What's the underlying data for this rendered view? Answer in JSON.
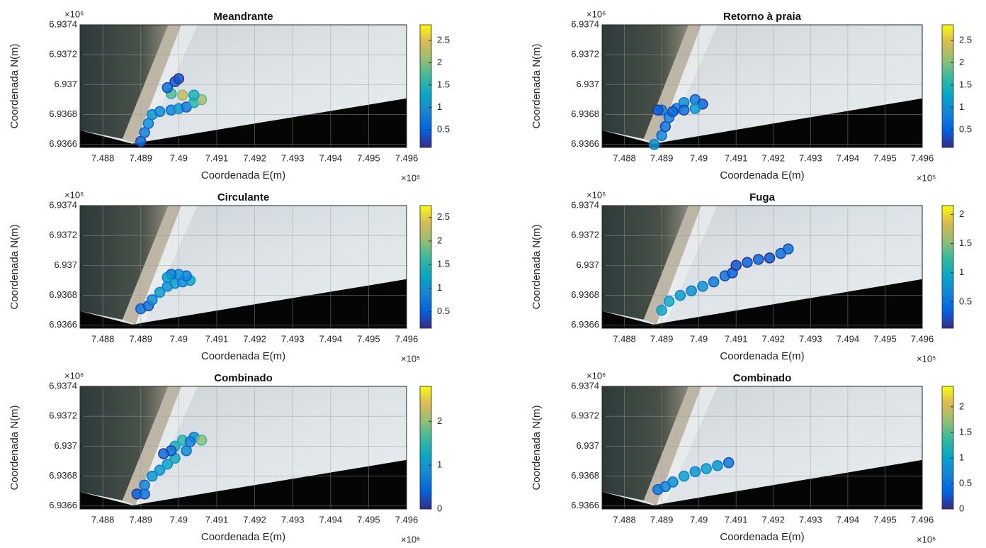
{
  "chart_data": [
    {
      "type": "scatter",
      "title": "Meandrante",
      "xlabel": "Coordenada E(m)",
      "ylabel": "Coordenada N(m)",
      "x_multiplier": "×10⁵",
      "y_multiplier": "×10⁶",
      "x": [
        7.489,
        7.4891,
        7.4892,
        7.4893,
        7.4895,
        7.4898,
        7.49,
        7.4902,
        7.4904,
        7.4906,
        7.4904,
        7.4901,
        7.4898,
        7.4897,
        7.4899,
        7.49
      ],
      "y": [
        6.93662,
        6.93668,
        6.93674,
        6.9368,
        6.93682,
        6.93683,
        6.93684,
        6.93685,
        6.93688,
        6.9369,
        6.93693,
        6.93693,
        6.93694,
        6.93698,
        6.93702,
        6.93704
      ],
      "color_values": [
        0.6,
        0.8,
        1.0,
        1.1,
        1.0,
        0.9,
        1.2,
        0.8,
        1.6,
        2.2,
        1.5,
        2.4,
        1.8,
        0.7,
        0.5,
        0.4
      ],
      "xlim": [
        7.4874,
        7.496
      ],
      "ylim": [
        6.93658,
        6.9374
      ],
      "xticks": [
        7.488,
        7.489,
        7.49,
        7.491,
        7.492,
        7.493,
        7.494,
        7.495,
        7.496
      ],
      "yticks": [
        6.9366,
        6.9368,
        6.937,
        6.9372,
        6.9374
      ],
      "clim": [
        0.1,
        2.85
      ],
      "cticks": [
        0.5,
        1,
        1.5,
        2,
        2.5
      ]
    },
    {
      "type": "scatter",
      "title": "Retorno à praia",
      "xlabel": "Coordenada E(m)",
      "ylabel": "Coordenada N(m)",
      "x_multiplier": "×10⁵",
      "y_multiplier": "×10⁶",
      "x": [
        7.4888,
        7.489,
        7.4891,
        7.4892,
        7.4894,
        7.4896,
        7.4899,
        7.4901,
        7.4899,
        7.4896,
        7.4893,
        7.489,
        7.4889
      ],
      "y": [
        6.9366,
        6.93666,
        6.93672,
        6.93678,
        6.93684,
        6.93688,
        6.9369,
        6.93687,
        6.93684,
        6.93683,
        6.93682,
        6.93683,
        6.93683
      ],
      "color_values": [
        1.1,
        0.9,
        0.7,
        0.8,
        0.9,
        1.0,
        0.8,
        0.6,
        1.2,
        0.7,
        0.6,
        0.9,
        0.5
      ],
      "xlim": [
        7.4874,
        7.496
      ],
      "ylim": [
        6.93658,
        6.9374
      ],
      "xticks": [
        7.488,
        7.489,
        7.49,
        7.491,
        7.492,
        7.493,
        7.494,
        7.495,
        7.496
      ],
      "yticks": [
        6.9366,
        6.9368,
        6.937,
        6.9372,
        6.9374
      ],
      "clim": [
        0.1,
        2.85
      ],
      "cticks": [
        0.5,
        1,
        1.5,
        2,
        2.5
      ]
    },
    {
      "type": "scatter",
      "title": "Circulante",
      "xlabel": "Coordenada E(m)",
      "ylabel": "Coordenada N(m)",
      "x_multiplier": "×10⁵",
      "y_multiplier": "×10⁶",
      "x": [
        7.489,
        7.4892,
        7.4893,
        7.4895,
        7.4897,
        7.4899,
        7.4901,
        7.4903,
        7.4902,
        7.49,
        7.4898,
        7.4897
      ],
      "y": [
        6.93671,
        6.93673,
        6.93677,
        6.93682,
        6.93686,
        6.93688,
        6.93689,
        6.9369,
        6.93693,
        6.93694,
        6.93694,
        6.93692
      ],
      "color_values": [
        0.8,
        0.7,
        1.0,
        1.2,
        1.1,
        1.2,
        1.0,
        1.3,
        0.9,
        1.1,
        0.8,
        1.2
      ],
      "xlim": [
        7.4874,
        7.496
      ],
      "ylim": [
        6.93658,
        6.9374
      ],
      "xticks": [
        7.488,
        7.489,
        7.49,
        7.491,
        7.492,
        7.493,
        7.494,
        7.495,
        7.496
      ],
      "yticks": [
        6.9366,
        6.9368,
        6.937,
        6.9372,
        6.9374
      ],
      "clim": [
        0.15,
        2.75
      ],
      "cticks": [
        0.5,
        1,
        1.5,
        2,
        2.5
      ]
    },
    {
      "type": "scatter",
      "title": "Fuga",
      "xlabel": "Coordenada E(m)",
      "ylabel": "Coordenada N(m)",
      "x_multiplier": "×10⁵",
      "y_multiplier": "×10⁶",
      "x": [
        7.489,
        7.4892,
        7.4895,
        7.4898,
        7.4901,
        7.4904,
        7.4907,
        7.4909,
        7.491,
        7.4913,
        7.4916,
        7.4919,
        7.4922,
        7.4924
      ],
      "y": [
        6.9367,
        6.93676,
        6.9368,
        6.93683,
        6.93686,
        6.93689,
        6.93693,
        6.93695,
        6.937,
        6.93702,
        6.93704,
        6.93705,
        6.93708,
        6.93711
      ],
      "color_values": [
        1.0,
        1.0,
        0.9,
        0.8,
        0.8,
        0.6,
        0.5,
        0.4,
        0.3,
        0.4,
        0.4,
        0.3,
        0.5,
        0.5
      ],
      "xlim": [
        7.4874,
        7.496
      ],
      "ylim": [
        6.93658,
        6.9374
      ],
      "xticks": [
        7.488,
        7.489,
        7.49,
        7.491,
        7.492,
        7.493,
        7.494,
        7.495,
        7.496
      ],
      "yticks": [
        6.9366,
        6.9368,
        6.937,
        6.9372,
        6.9374
      ],
      "clim": [
        0.05,
        2.15
      ],
      "cticks": [
        0.5,
        1,
        1.5,
        2
      ]
    },
    {
      "type": "scatter",
      "title": "Combinado",
      "xlabel": "Coordenada E(m)",
      "ylabel": "Coordenada N(m)",
      "x_multiplier": "×10⁵",
      "y_multiplier": "×10⁶",
      "x": [
        7.4889,
        7.4891,
        7.4891,
        7.4893,
        7.4895,
        7.4897,
        7.4899,
        7.4902,
        7.4899,
        7.4901,
        7.4904,
        7.4906,
        7.4903,
        7.4898,
        7.4896
      ],
      "y": [
        6.93668,
        6.93668,
        6.93674,
        6.9368,
        6.93684,
        6.93688,
        6.93692,
        6.93697,
        6.937,
        6.93704,
        6.93706,
        6.93704,
        6.93703,
        6.93697,
        6.93695
      ],
      "color_values": [
        0.4,
        0.6,
        0.8,
        1.0,
        1.1,
        1.2,
        1.3,
        0.9,
        1.4,
        1.6,
        1.0,
        2.0,
        0.8,
        0.6,
        0.5
      ],
      "xlim": [
        7.4874,
        7.496
      ],
      "ylim": [
        6.93658,
        6.9374
      ],
      "xticks": [
        7.488,
        7.489,
        7.49,
        7.491,
        7.492,
        7.493,
        7.494,
        7.495,
        7.496
      ],
      "yticks": [
        6.9366,
        6.9368,
        6.937,
        6.9372,
        6.9374
      ],
      "clim": [
        0,
        2.8
      ],
      "cticks": [
        0,
        1,
        2
      ]
    },
    {
      "type": "scatter",
      "title": "Combinado",
      "xlabel": "Coordenada E(m)",
      "ylabel": "Coordenada N(m)",
      "x_multiplier": "×10⁵",
      "y_multiplier": "×10⁶",
      "x": [
        7.4889,
        7.4891,
        7.4893,
        7.4896,
        7.4899,
        7.4902,
        7.4905,
        7.4908
      ],
      "y": [
        6.93671,
        6.93673,
        6.93676,
        6.9368,
        6.93683,
        6.93685,
        6.93687,
        6.93689
      ],
      "color_values": [
        0.6,
        0.7,
        0.8,
        1.0,
        0.9,
        1.0,
        0.9,
        0.6
      ],
      "xlim": [
        7.4874,
        7.496
      ],
      "ylim": [
        6.93658,
        6.9374
      ],
      "xticks": [
        7.488,
        7.489,
        7.49,
        7.491,
        7.492,
        7.493,
        7.494,
        7.495,
        7.496
      ],
      "yticks": [
        6.9366,
        6.9368,
        6.937,
        6.9372,
        6.9374
      ],
      "clim": [
        0,
        2.4
      ],
      "cticks": [
        0,
        0.5,
        1,
        1.5,
        2
      ]
    }
  ],
  "colormap": [
    "#352a87",
    "#0363e1",
    "#1485d4",
    "#06a7c6",
    "#38b99e",
    "#92bf73",
    "#d9ba56",
    "#f9fb0e"
  ]
}
